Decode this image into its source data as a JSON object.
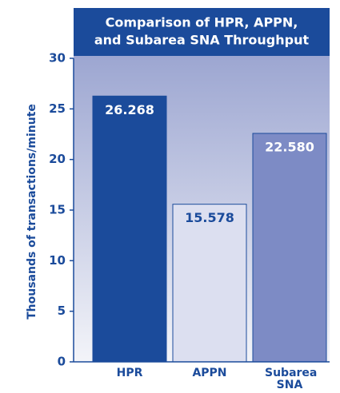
{
  "chart_data": {
    "type": "bar",
    "title": [
      "Comparison of HPR, APPN,",
      "and Subarea SNA Throughput"
    ],
    "y_label": "Thousands of transactions/minute",
    "categories": [
      "HPR",
      "APPN",
      "Subarea SNA"
    ],
    "values": [
      26.268,
      15.578,
      22.58
    ],
    "value_labels": [
      "26.268",
      "15.578",
      "22.580"
    ],
    "colors": [
      "#1b4b9b",
      "#dcdff0",
      "#7d8bc5"
    ],
    "label_colors": [
      "#ffffff",
      "#1b4b9b",
      "#ffffff"
    ],
    "ylim": [
      0,
      30
    ],
    "yticks": [
      0,
      5,
      10,
      15,
      20,
      25,
      30
    ],
    "grid": false
  }
}
